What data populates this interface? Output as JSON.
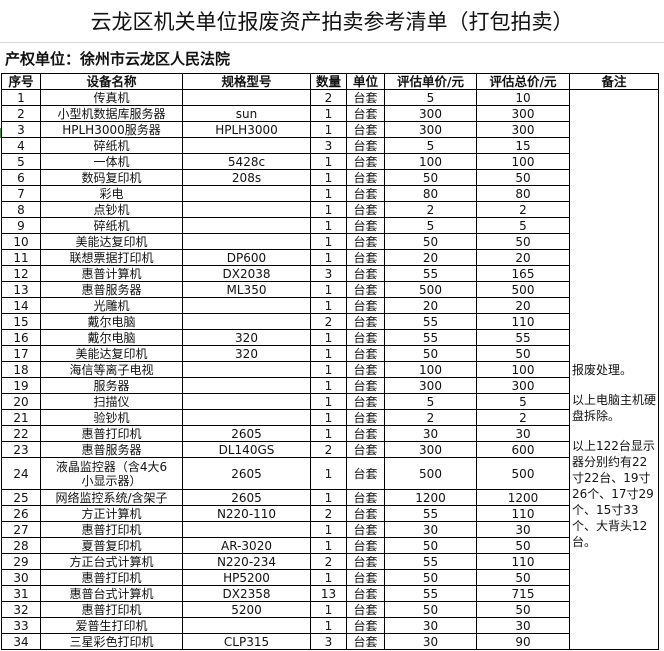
{
  "title": "云龙区机关单位报废资产拍卖参考清单（打包拍卖）",
  "owner": "产权单位：徐州市云龙区人民法院",
  "columns": [
    "序号",
    "设备名称",
    "规格型号",
    "数量",
    "单位",
    "评估单价/元",
    "评估总价/元",
    "备注"
  ],
  "rows": [
    [
      "1",
      "传真机",
      "",
      "2",
      "台套",
      "5",
      "10"
    ],
    [
      "2",
      "小型机数据库服务器",
      "sun",
      "1",
      "台套",
      "300",
      "300"
    ],
    [
      "3",
      "HPLH3000服务器",
      "HPLH3000",
      "1",
      "台套",
      "300",
      "300"
    ],
    [
      "4",
      "碎纸机",
      "",
      "3",
      "台套",
      "5",
      "15"
    ],
    [
      "5",
      "一体机",
      "5428c",
      "1",
      "台套",
      "100",
      "100"
    ],
    [
      "6",
      "数码复印机",
      "208s",
      "1",
      "台套",
      "50",
      "50"
    ],
    [
      "7",
      "彩电",
      "",
      "1",
      "台套",
      "80",
      "80"
    ],
    [
      "8",
      "点钞机",
      "",
      "1",
      "台套",
      "2",
      "2"
    ],
    [
      "9",
      "碎纸机",
      "",
      "1",
      "台套",
      "5",
      "5"
    ],
    [
      "10",
      "美能达复印机",
      "",
      "1",
      "台套",
      "50",
      "50"
    ],
    [
      "11",
      "联想票据打印机",
      "DP600",
      "1",
      "台套",
      "20",
      "20"
    ],
    [
      "12",
      "惠普计算机",
      "DX2038",
      "3",
      "台套",
      "55",
      "165"
    ],
    [
      "13",
      "惠普服务器",
      "ML350",
      "1",
      "台套",
      "500",
      "500"
    ],
    [
      "14",
      "光雕机",
      "",
      "1",
      "台套",
      "20",
      "20"
    ],
    [
      "15",
      "戴尔电脑",
      "",
      "2",
      "台套",
      "55",
      "110"
    ],
    [
      "16",
      "戴尔电脑",
      "320",
      "1",
      "台套",
      "55",
      "55"
    ],
    [
      "17",
      "美能达复印机",
      "320",
      "1",
      "台套",
      "50",
      "50"
    ],
    [
      "18",
      "海信等离子电视",
      "",
      "1",
      "台套",
      "100",
      "100"
    ],
    [
      "19",
      "服务器",
      "",
      "1",
      "台套",
      "300",
      "300"
    ],
    [
      "20",
      "扫描仪",
      "",
      "1",
      "台套",
      "5",
      "5"
    ],
    [
      "21",
      "验钞机",
      "",
      "1",
      "台套",
      "2",
      "2"
    ],
    [
      "22",
      "惠普打印机",
      "2605",
      "1",
      "台套",
      "30",
      "30"
    ],
    [
      "23",
      "惠普服务器",
      "DL140GS",
      "2",
      "台套",
      "300",
      "600"
    ],
    [
      "24",
      "液晶监控器（含4大6小显示器）",
      "2605",
      "1",
      "台套",
      "500",
      "500"
    ],
    [
      "25",
      "网络监控系统/含架子",
      "2605",
      "1",
      "台套",
      "1200",
      "1200"
    ],
    [
      "26",
      "方正计算机",
      "N220-110",
      "2",
      "台套",
      "55",
      "110"
    ],
    [
      "27",
      "惠普打印机",
      "",
      "1",
      "台套",
      "30",
      "30"
    ],
    [
      "28",
      "夏普复印机",
      "AR-3020",
      "1",
      "台套",
      "50",
      "50"
    ],
    [
      "29",
      "方正台式计算机",
      "N220-234",
      "2",
      "台套",
      "55",
      "110"
    ],
    [
      "30",
      "惠普打印机",
      "HP5200",
      "1",
      "台套",
      "50",
      "50"
    ],
    [
      "31",
      "惠普台式计算机",
      "DX2358",
      "13",
      "台套",
      "55",
      "715"
    ],
    [
      "32",
      "惠普打印机",
      "5200",
      "1",
      "台套",
      "50",
      "50"
    ],
    [
      "33",
      "爱普生打印机",
      "",
      "1",
      "台套",
      "30",
      "30"
    ],
    [
      "34",
      "三星彩色打印机",
      "CLP315",
      "3",
      "台套",
      "30",
      "90"
    ]
  ],
  "remarks": [
    "报废处理。",
    "以上电脑主机硬盘拆除。",
    "以上122台显示器分别约有22寸22台、19寸26个、17寸29个、15寸33个、大背头12台。"
  ]
}
